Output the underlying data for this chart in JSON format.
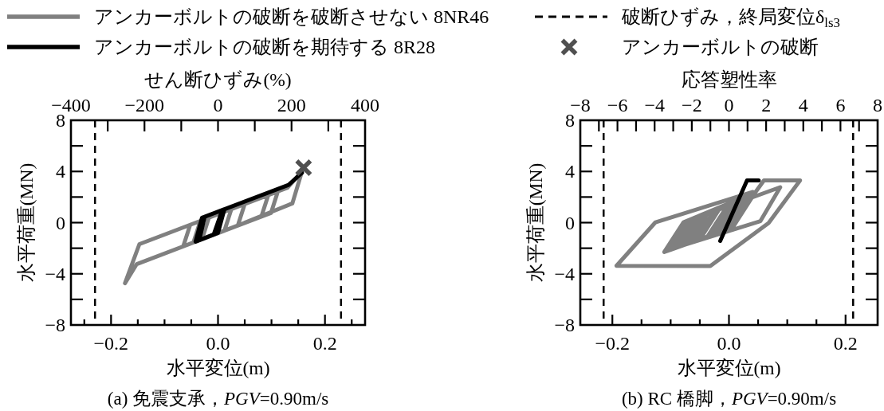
{
  "chart_data": [
    {
      "type": "line",
      "x2label": "せん断ひずみ(%)",
      "xlabel": "水平変位(m)",
      "ylabel": "水平荷重(MN)",
      "legend": "top",
      "xlim": [
        -0.275,
        0.275
      ],
      "xticks": [
        {
          "value": -0.25,
          "label": null
        },
        {
          "value": -0.2,
          "label": "−0.2"
        },
        {
          "value": -0.15,
          "label": null
        },
        {
          "value": -0.1,
          "label": null
        },
        {
          "value": -0.05,
          "label": null
        },
        {
          "value": 0,
          "label": "0.0"
        },
        {
          "value": 0.05,
          "label": null
        },
        {
          "value": 0.1,
          "label": null
        },
        {
          "value": 0.15,
          "label": null
        },
        {
          "value": 0.2,
          "label": "0.2"
        },
        {
          "value": 0.25,
          "label": null
        }
      ],
      "x2lim": [
        -400,
        400
      ],
      "x2ticks": [
        {
          "value": -400,
          "label": "−400"
        },
        {
          "value": -300,
          "label": null
        },
        {
          "value": -200,
          "label": "−200"
        },
        {
          "value": -100,
          "label": null
        },
        0,
        {
          "value": 100,
          "label": null
        },
        200,
        {
          "value": 300,
          "label": null
        },
        400
      ],
      "ylim": [
        -8,
        8
      ],
      "yticks": [
        {
          "value": -8,
          "label": "−8"
        },
        {
          "value": -6,
          "label": null
        },
        {
          "value": -4,
          "label": "−4"
        },
        {
          "value": -2,
          "label": null
        },
        0,
        {
          "value": 2,
          "label": null
        },
        4,
        {
          "value": 6,
          "label": null
        },
        8
      ],
      "series": [
        {
          "name": "アンカーボルトの破断を破断させない 8NR46",
          "color": "#808080",
          "x": [
            0.0,
            0.01,
            0.025,
            0.012,
            -0.03,
            -0.017,
            0.05,
            0.037,
            -0.046,
            -0.033,
            0.094,
            0.081,
            -0.065,
            -0.052,
            0.112,
            0.099,
            -0.152,
            -0.174,
            -0.147,
            0.13,
            0.157,
            0.139,
            0.05
          ],
          "values": [
            0.0,
            0.82,
            1.06,
            -0.63,
            -1.3,
            0.39,
            1.46,
            -0.23,
            -1.55,
            0.14,
            2.15,
            0.47,
            -1.85,
            -0.17,
            2.44,
            0.75,
            -3.24,
            -4.74,
            -1.68,
            2.73,
            4.0,
            1.5,
            0.0
          ]
        },
        {
          "name": "アンカーボルトの破断を期待する 8R28",
          "color": "#000000",
          "x": [
            0.0,
            0.008,
            -0.008,
            -0.042,
            -0.03,
            0.012,
            0.0,
            -0.035,
            -0.025,
            0.132,
            0.157
          ],
          "values": [
            -0.2,
            0.99,
            -0.93,
            -1.49,
            0.38,
            1.05,
            -0.8,
            -1.37,
            0.46,
            2.95,
            3.9
          ]
        },
        {
          "name": "アンカーボルトの破断",
          "type": "scatter",
          "marker": "cross",
          "color": "#505050",
          "x": [
            0.16
          ],
          "values": [
            4.3
          ]
        }
      ],
      "ref_lines": [
        {
          "axis": "x",
          "value": -0.23,
          "label": "破断ひずみ，終局変位δ$_{ls3}$",
          "color": "#000000",
          "line_style": "dashed"
        },
        {
          "axis": "x",
          "value": 0.23,
          "color": "#000000",
          "line_style": "dashed"
        }
      ],
      "annotations": [
        "(a) 免震支承，*PGV*=0.90m/s"
      ]
    },
    {
      "type": "line",
      "x2label": "応答塑性率",
      "xlabel": "水平変位(m)",
      "ylabel": "水平荷重(MN)",
      "xlim": [
        -0.255,
        0.255
      ],
      "xticks": [
        {
          "value": -0.2,
          "label": "−0.2"
        },
        {
          "value": -0.15,
          "label": null
        },
        {
          "value": -0.1,
          "label": null
        },
        {
          "value": -0.05,
          "label": null
        },
        {
          "value": 0,
          "label": "0.0"
        },
        {
          "value": 0.05,
          "label": null
        },
        {
          "value": 0.1,
          "label": null
        },
        {
          "value": 0.15,
          "label": null
        },
        {
          "value": 0.2,
          "label": "0.2"
        }
      ],
      "x2lim": [
        -8,
        8
      ],
      "x2ticks": [
        {
          "value": -8,
          "label": "−8"
        },
        {
          "value": -7,
          "label": null
        },
        {
          "value": -6,
          "label": "−6"
        },
        {
          "value": -5,
          "label": null
        },
        {
          "value": -4,
          "label": "−4"
        },
        {
          "value": -3,
          "label": null
        },
        {
          "value": -2,
          "label": "−2"
        },
        {
          "value": -1,
          "label": null
        },
        0,
        {
          "value": 1,
          "label": null
        },
        2,
        {
          "value": 3,
          "label": null
        },
        4,
        {
          "value": 5,
          "label": null
        },
        6,
        {
          "value": 7,
          "label": null
        },
        8
      ],
      "ylim": [
        -8,
        8
      ],
      "yticks": [
        {
          "value": -8,
          "label": "−8"
        },
        {
          "value": -6,
          "label": null
        },
        {
          "value": -4,
          "label": "−4"
        },
        {
          "value": -2,
          "label": null
        },
        0,
        {
          "value": 2,
          "label": null
        },
        4,
        {
          "value": 6,
          "label": null
        },
        8
      ],
      "series": [
        {
          "color": "#808080",
          "x": [
            -0.02,
            0.0,
            -0.037,
            -0.05,
            -0.014,
            0.008,
            -0.03,
            -0.06,
            -0.024,
            0.015,
            -0.023,
            -0.07,
            -0.035,
            0.02,
            -0.018,
            -0.078,
            -0.043,
            0.025,
            -0.014,
            -0.085,
            -0.051,
            0.03,
            -0.009,
            -0.092,
            -0.058,
            0.035,
            -0.004,
            -0.1,
            -0.066,
            0.04,
            0.001,
            -0.105,
            -0.072,
            0.045,
            0.006,
            -0.111,
            -0.078,
            0.088,
            0.054,
            -0.109,
            -0.078,
            0.045,
            0.06,
            0.122,
            0.068,
            -0.032,
            -0.193,
            -0.126,
            0.041
          ],
          "values": [
            0.0,
            1.5,
            -1.1,
            -1.31,
            1.24,
            1.65,
            -0.98,
            -1.47,
            1.04,
            1.79,
            -0.87,
            -1.63,
            0.84,
            1.88,
            -0.79,
            -1.76,
            0.68,
            1.98,
            -0.72,
            -1.88,
            0.54,
            2.07,
            -0.64,
            -1.99,
            0.4,
            2.17,
            -0.56,
            -2.12,
            0.24,
            2.26,
            -0.49,
            -2.2,
            0.14,
            2.36,
            -0.41,
            -2.3,
            0.02,
            2.77,
            0.12,
            -2.2,
            0.02,
            2.35,
            3.3,
            3.3,
            -0.03,
            -3.4,
            -3.38,
            0.03,
            2.4
          ]
        },
        {
          "color": "#000000",
          "x": [
            -0.015,
            0.031,
            0.051
          ],
          "values": [
            -1.43,
            3.3,
            3.3
          ]
        }
      ],
      "ref_lines": [
        {
          "axis": "x",
          "value": -0.215,
          "color": "#000000",
          "line_style": "dashed"
        },
        {
          "axis": "x",
          "value": 0.213,
          "color": "#000000",
          "line_style": "dashed"
        }
      ],
      "annotations": [
        "(b) RC 橋脚，*PGV*=0.90m/s"
      ]
    }
  ]
}
